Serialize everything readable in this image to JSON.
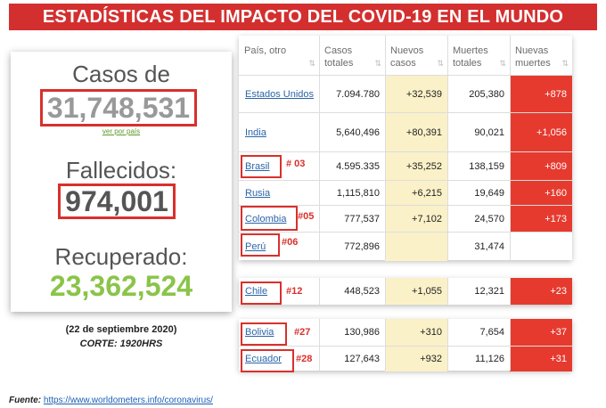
{
  "banner": {
    "title": "ESTADÍSTICAS DEL IMPACTO DEL COVID-19 EN EL MUNDO"
  },
  "summary": {
    "cases_label": "Casos de coronavirus:",
    "cases_value": "31,748,531",
    "link_text": "ver por país",
    "deaths_label": "Fallecidos:",
    "deaths_value": "974,001",
    "recovered_label": "Recuperado:",
    "recovered_value": "23,362,524",
    "date": "(22 de septiembre 2020)",
    "cutoff": "CORTE: 1920HRS"
  },
  "source": {
    "label": "Fuente:",
    "url": "https://www.worldometers.info/coronavirus/"
  },
  "table": {
    "headers": [
      "País, otro",
      "Casos totales",
      "Nuevos casos",
      "Muertes totales",
      "Nuevas muertes"
    ],
    "rows": [
      {
        "country": "Estados Unidos",
        "total": "7.094.780",
        "new_cases": "+32,539",
        "deaths": "205,380",
        "new_deaths": "+878",
        "rank": ""
      },
      {
        "country": "India",
        "total": "5,640,496",
        "new_cases": "+80,391",
        "deaths": "90,021",
        "new_deaths": "+1,056",
        "rank": ""
      },
      {
        "country": "Brasil",
        "total": "4.595.335",
        "new_cases": "+35,252",
        "deaths": "138,159",
        "new_deaths": "+809",
        "rank": "# 03"
      },
      {
        "country": "Rusia",
        "total": "1,115,810",
        "new_cases": "+6,215",
        "deaths": "19,649",
        "new_deaths": "+160",
        "rank": ""
      },
      {
        "country": "Colombia",
        "total": "777,537",
        "new_cases": "+7,102",
        "deaths": "24,570",
        "new_deaths": "+173",
        "rank": "#05"
      },
      {
        "country": "Perú",
        "total": "772,896",
        "new_cases": "",
        "deaths": "31,474",
        "new_deaths": "",
        "rank": "#06"
      }
    ],
    "chile": {
      "country": "Chile",
      "total": "448,523",
      "new_cases": "+1,055",
      "deaths": "12,321",
      "new_deaths": "+23",
      "rank": "#12"
    },
    "bottom": [
      {
        "country": "Bolivia",
        "total": "130,986",
        "new_cases": "+310",
        "deaths": "7,654",
        "new_deaths": "+37",
        "rank": "#27"
      },
      {
        "country": "Ecuador",
        "total": "127,643",
        "new_cases": "+932",
        "deaths": "11,126",
        "new_deaths": "+31",
        "rank": "#28"
      }
    ]
  }
}
